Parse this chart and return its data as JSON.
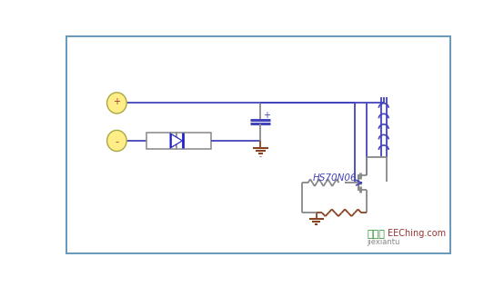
{
  "bg_color": "#ffffff",
  "border_color": "#6699bb",
  "line_color_blue": "#4444bb",
  "line_color_gray": "#888888",
  "diode_color": "#2222cc",
  "ground_color": "#884422",
  "ellipse_fill": "#ffee88",
  "ellipse_edge": "#aaa844",
  "cap_color": "#4444bb",
  "ind_color": "#4444bb",
  "mosfet_color": "#4444bb",
  "mosfet_body_color": "#888888",
  "watermark_green": "#228B22",
  "watermark_red": "#993333",
  "label_hs70n06": "HS70N06",
  "watermark1": "接线图",
  "watermark2": "EEChing.com",
  "watermark3": "jiexiantu",
  "plus_color": "#993333",
  "minus_color": "#993333"
}
